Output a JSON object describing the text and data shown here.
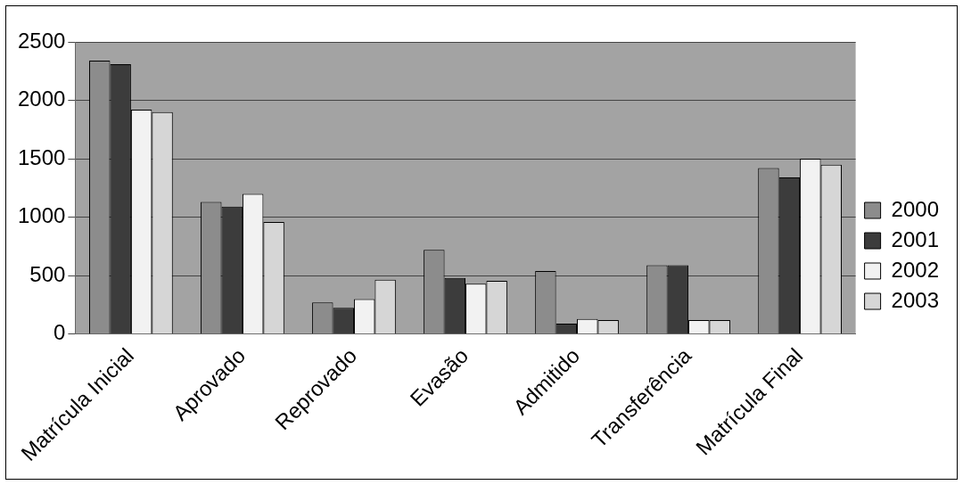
{
  "chart_data": {
    "type": "bar",
    "categories": [
      "Matrícula Inicial",
      "Aprovado",
      "Reprovado",
      "Evasão",
      "Admitido",
      "Transferência",
      "Matrícula Final"
    ],
    "series": [
      {
        "name": "2000",
        "color": "#8c8c8c",
        "values": [
          2340,
          1130,
          270,
          720,
          540,
          590,
          1420
        ]
      },
      {
        "name": "2001",
        "color": "#3c3c3c",
        "values": [
          2310,
          1090,
          225,
          480,
          90,
          590,
          1340
        ]
      },
      {
        "name": "2002",
        "color": "#f2f2f2",
        "values": [
          1920,
          1200,
          300,
          430,
          130,
          120,
          1500
        ]
      },
      {
        "name": "2003",
        "color": "#d6d6d6",
        "values": [
          1900,
          960,
          465,
          455,
          120,
          120,
          1450
        ]
      }
    ],
    "ylim": [
      0,
      2500
    ],
    "yticks": [
      0,
      500,
      1000,
      1500,
      2000,
      2500
    ],
    "grid": "y",
    "legend": "right"
  }
}
